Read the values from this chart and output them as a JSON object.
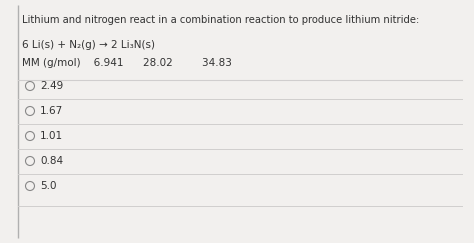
{
  "title": "Lithium and nitrogen react in a combination reaction to produce lithium nitride:",
  "equation": "6 Li(s) + N₂(g) → 2 Li₃N(s)",
  "mm_label": "MM (g/mol)    6.941      28.02         34.83",
  "options": [
    "2.49",
    "1.67",
    "1.01",
    "0.84",
    "5.0"
  ],
  "bg_color": "#f2f0ee",
  "text_color": "#333333",
  "line_color": "#d0cece",
  "title_fontsize": 7.2,
  "eq_fontsize": 7.5,
  "mm_fontsize": 7.5,
  "option_fontsize": 7.5,
  "left_border_color": "#b0b0b0"
}
